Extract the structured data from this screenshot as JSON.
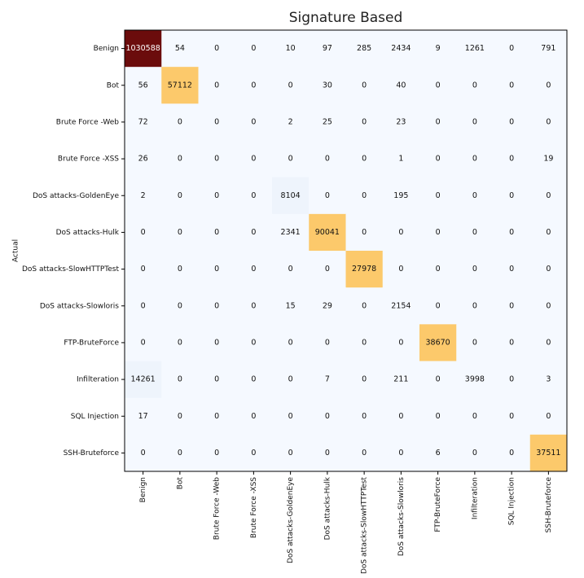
{
  "chart_data": {
    "type": "heatmap",
    "title": "Signature Based",
    "xlabel": "",
    "ylabel": "Actual",
    "row_labels": [
      "Benign",
      "Bot",
      "Brute Force -Web",
      "Brute Force -XSS",
      "DoS attacks-GoldenEye",
      "DoS attacks-Hulk",
      "DoS attacks-SlowHTTPTest",
      "DoS attacks-Slowloris",
      "FTP-BruteForce",
      "Infilteration",
      "SQL Injection",
      "SSH-Bruteforce"
    ],
    "column_labels": [
      "Benign",
      "Bot",
      "Brute Force -Web",
      "Brute Force -XSS",
      "DoS attacks-GoldenEye",
      "DoS attacks-Hulk",
      "DoS attacks-SlowHTTPTest",
      "DoS attacks-Slowloris",
      "FTP-BruteForce",
      "Infilteration",
      "SQL Injection",
      "SSH-Bruteforce"
    ],
    "values": [
      [
        1030588,
        54,
        0,
        0,
        10,
        97,
        285,
        2434,
        9,
        1261,
        0,
        791
      ],
      [
        56,
        57112,
        0,
        0,
        0,
        30,
        0,
        40,
        0,
        0,
        0,
        0
      ],
      [
        72,
        0,
        0,
        0,
        2,
        25,
        0,
        23,
        0,
        0,
        0,
        0
      ],
      [
        26,
        0,
        0,
        0,
        0,
        0,
        0,
        1,
        0,
        0,
        0,
        19
      ],
      [
        2,
        0,
        0,
        0,
        8104,
        0,
        0,
        195,
        0,
        0,
        0,
        0
      ],
      [
        0,
        0,
        0,
        0,
        2341,
        90041,
        0,
        0,
        0,
        0,
        0,
        0
      ],
      [
        0,
        0,
        0,
        0,
        0,
        0,
        27978,
        0,
        0,
        0,
        0,
        0
      ],
      [
        0,
        0,
        0,
        0,
        15,
        29,
        0,
        2154,
        0,
        0,
        0,
        0
      ],
      [
        0,
        0,
        0,
        0,
        0,
        0,
        0,
        0,
        38670,
        0,
        0,
        0
      ],
      [
        14261,
        0,
        0,
        0,
        0,
        7,
        0,
        211,
        0,
        3998,
        0,
        3
      ],
      [
        17,
        0,
        0,
        0,
        0,
        0,
        0,
        0,
        0,
        0,
        0,
        0
      ],
      [
        0,
        0,
        0,
        0,
        0,
        0,
        0,
        0,
        6,
        0,
        0,
        37511
      ]
    ],
    "colors": {
      "background_cell": "#f5f9ff",
      "faint_cell": "#eef4fc",
      "highlight_cell": "#fcc96b",
      "max_cell": "#6b0c0c",
      "text_dark": "#111111",
      "text_light": "#ffffff"
    }
  }
}
